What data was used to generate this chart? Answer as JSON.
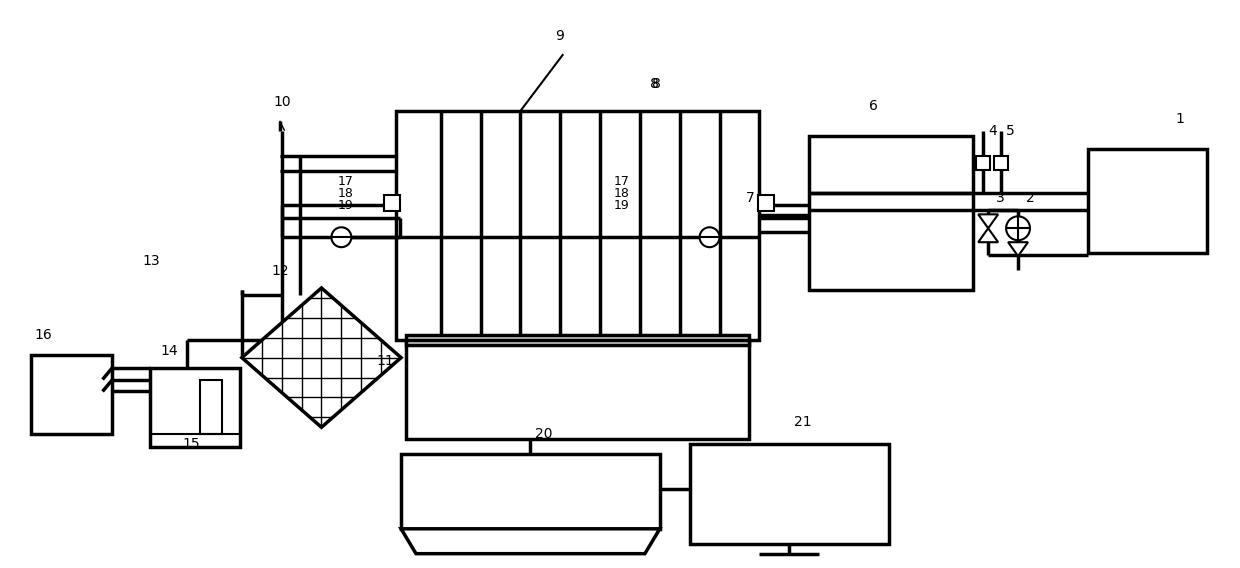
{
  "bg_color": "#ffffff",
  "lw": 2.0,
  "lw_t": 2.5
}
